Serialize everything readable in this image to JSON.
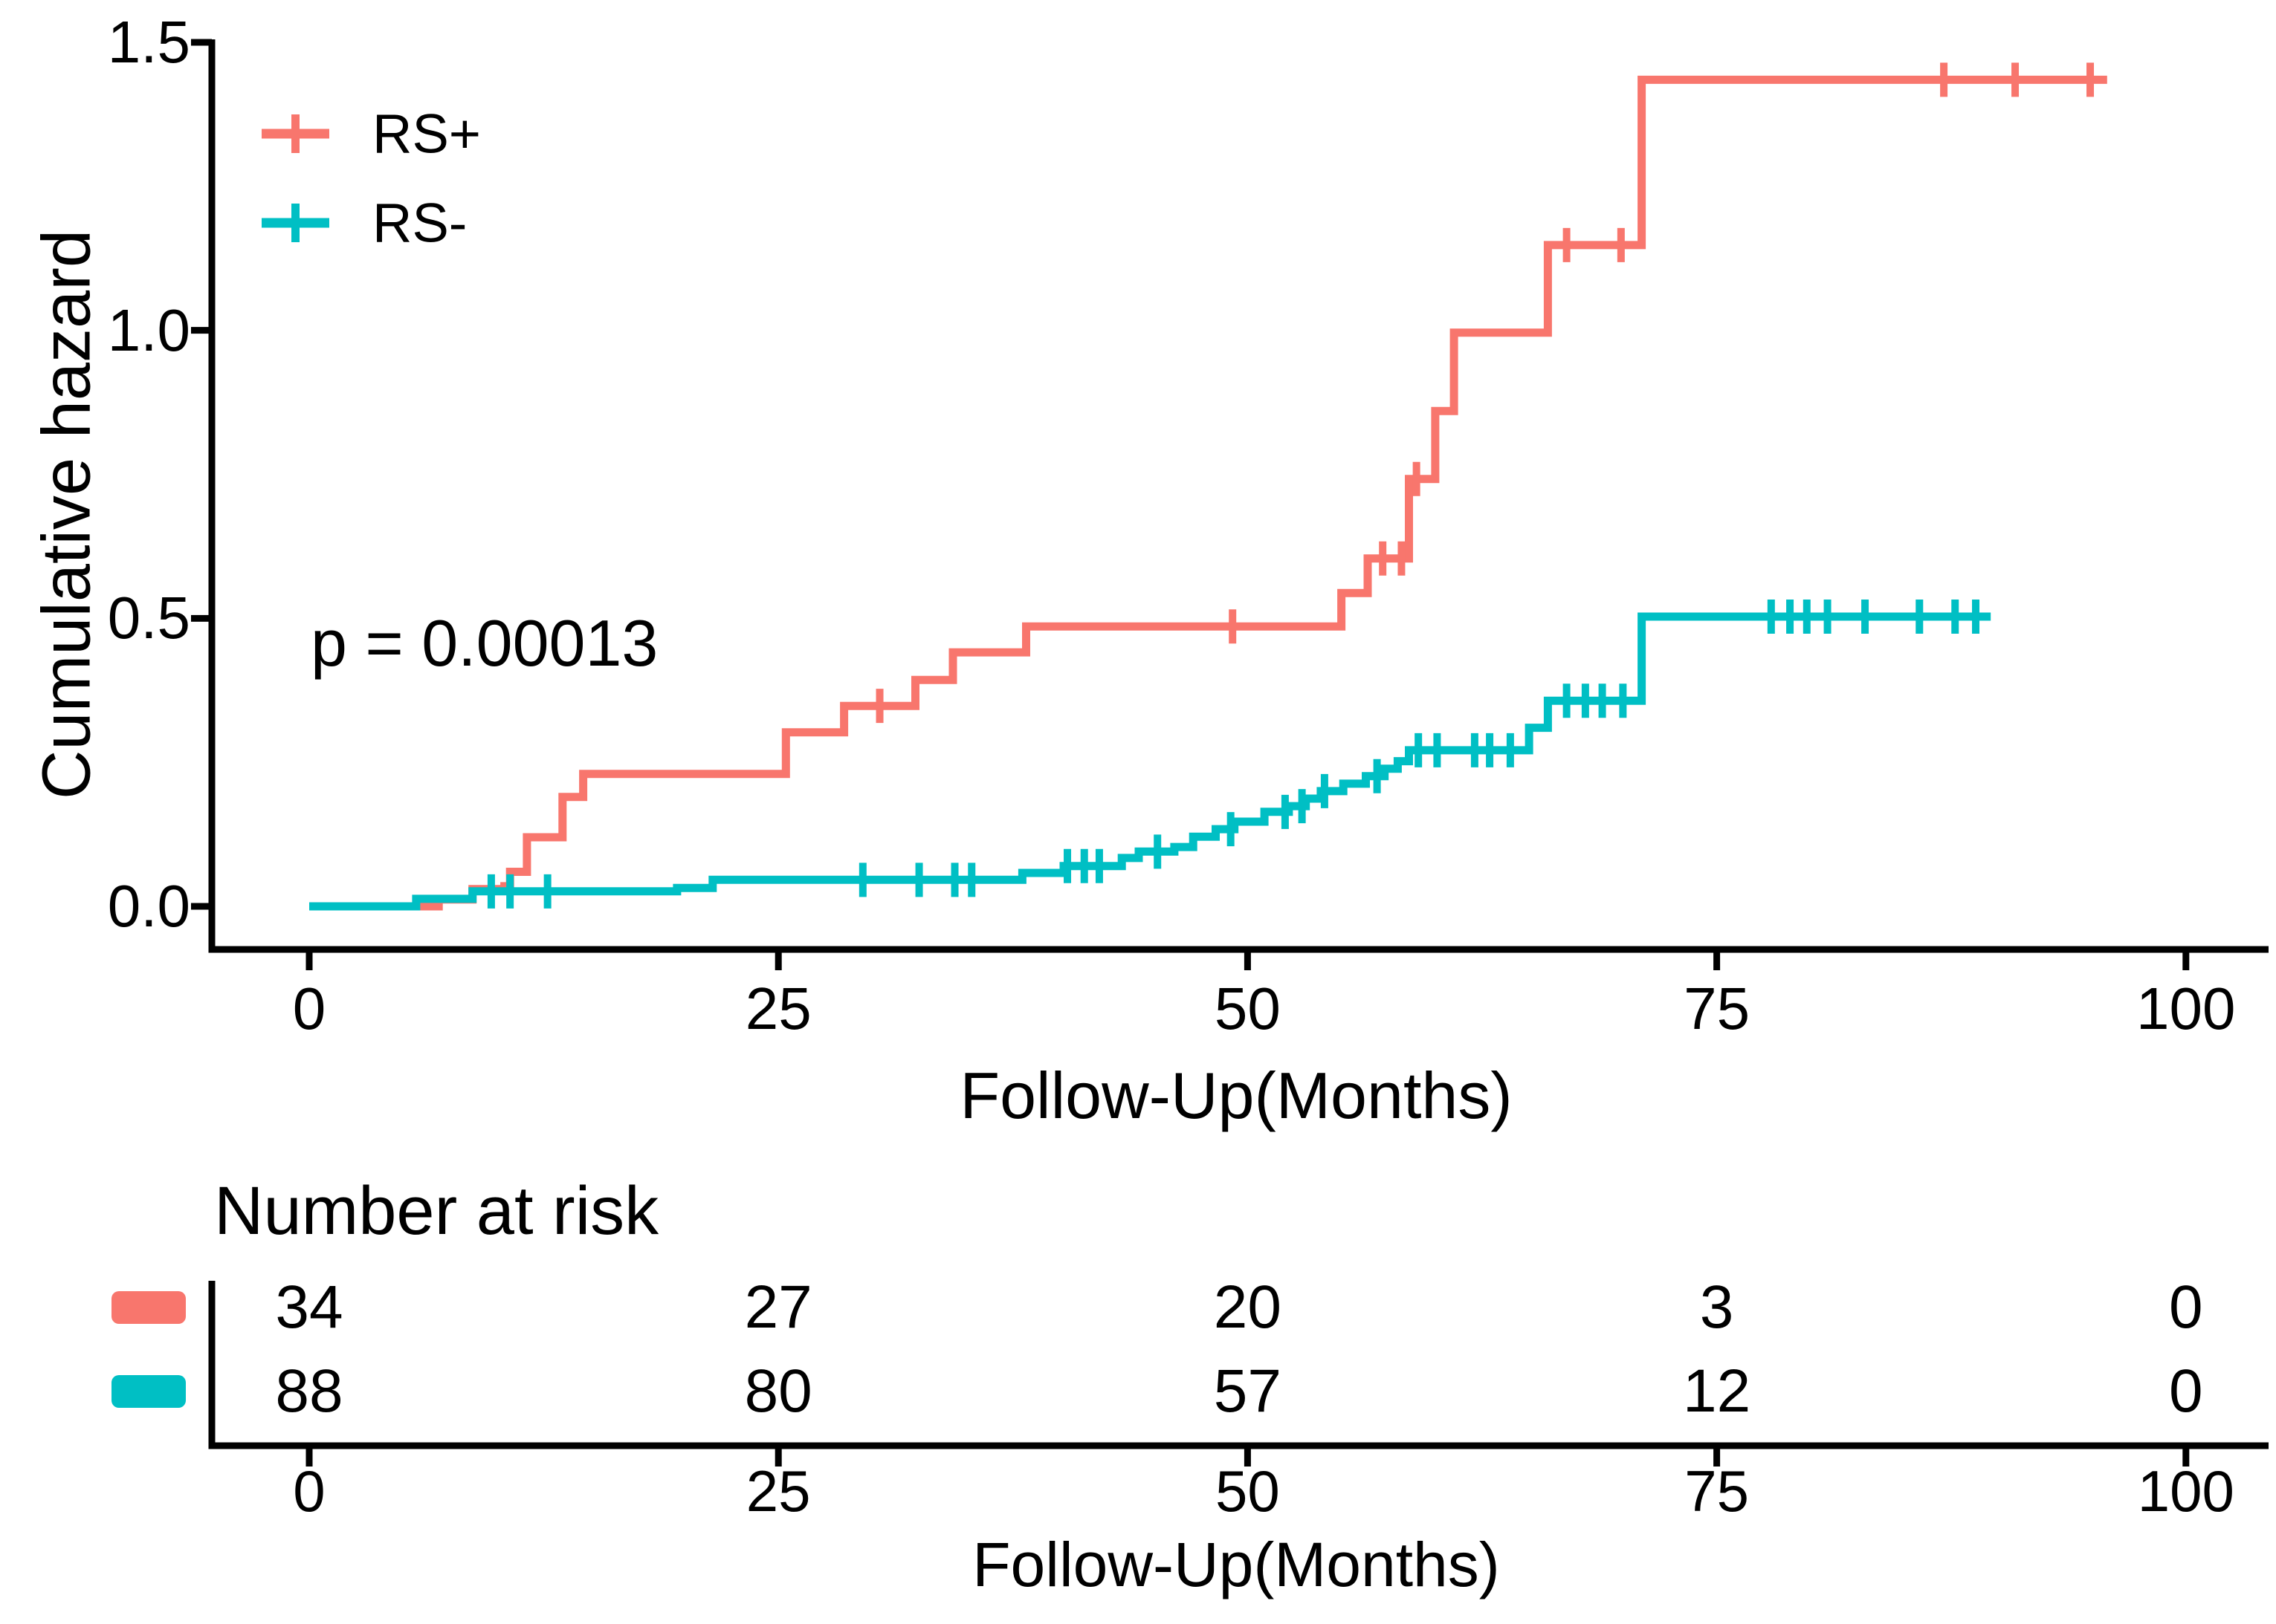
{
  "figure": {
    "y_axis_label": "Cumulative hazard",
    "x_axis_label": "Follow-Up(Months)",
    "p_value_text": "p = 0.00013",
    "colors": {
      "rs_plus": "#F8766D",
      "rs_minus": "#00BFC4",
      "axis": "#000000",
      "text": "#000000"
    }
  },
  "legend": {
    "items": [
      {
        "label": "RS+",
        "color": "#F8766D"
      },
      {
        "label": "RS-",
        "color": "#00BFC4"
      }
    ]
  },
  "chart_data": {
    "type": "line",
    "subtype": "step-function-cumulative-hazard",
    "title": "",
    "xlabel": "Follow-Up(Months)",
    "ylabel": "Cumulative hazard",
    "xlim": [
      0,
      100
    ],
    "ylim": [
      0,
      1.5
    ],
    "x_tick_values": [
      0,
      25,
      50,
      75,
      100
    ],
    "x_tick_labels": [
      "0",
      "25",
      "50",
      "75",
      "100"
    ],
    "y_tick_values": [
      0.0,
      0.5,
      1.0,
      1.5
    ],
    "y_tick_labels": [
      "0.0",
      "0.5",
      "1.0",
      "1.5"
    ],
    "grid": false,
    "legend_position": "inside-top-left",
    "annotations": [
      {
        "text": "p = 0.00013",
        "x": 1,
        "y": 0.5
      }
    ],
    "series": [
      {
        "name": "RS+",
        "color": "#F8766D",
        "end_month": 95.8,
        "steps": [
          [
            0,
            0
          ],
          [
            6.9,
            0.012
          ],
          [
            8.7,
            0.03
          ],
          [
            10.4,
            0.035
          ],
          [
            10.7,
            0.06
          ],
          [
            11.6,
            0.12
          ],
          [
            13.5,
            0.19
          ],
          [
            14.6,
            0.23
          ],
          [
            25.4,
            0.302
          ],
          [
            28.5,
            0.348
          ],
          [
            32.3,
            0.393
          ],
          [
            34.3,
            0.441
          ],
          [
            38.2,
            0.486
          ],
          [
            55.0,
            0.544
          ],
          [
            56.4,
            0.604
          ],
          [
            58.6,
            0.742
          ],
          [
            60.0,
            0.86
          ],
          [
            61.0,
            0.996
          ],
          [
            66.0,
            1.148
          ],
          [
            71.0,
            1.435
          ]
        ],
        "censor_marks": [
          [
            30.4,
            0.348
          ],
          [
            49.2,
            0.486
          ],
          [
            57.2,
            0.604
          ],
          [
            58.2,
            0.604
          ],
          [
            59.0,
            0.742
          ],
          [
            67.0,
            1.148
          ],
          [
            69.9,
            1.148
          ],
          [
            87.1,
            1.435
          ],
          [
            90.9,
            1.435
          ],
          [
            94.9,
            1.435
          ]
        ]
      },
      {
        "name": "RS-",
        "color": "#00BFC4",
        "end_month": 89.6,
        "steps": [
          [
            0,
            0
          ],
          [
            5.7,
            0.013
          ],
          [
            8.7,
            0.026
          ],
          [
            19.6,
            0.032
          ],
          [
            21.5,
            0.046
          ],
          [
            38.0,
            0.058
          ],
          [
            40.2,
            0.07
          ],
          [
            43.3,
            0.084
          ],
          [
            44.2,
            0.095
          ],
          [
            46.1,
            0.103
          ],
          [
            47.1,
            0.121
          ],
          [
            48.3,
            0.134
          ],
          [
            49.3,
            0.147
          ],
          [
            50.9,
            0.164
          ],
          [
            52.2,
            0.174
          ],
          [
            53.1,
            0.187
          ],
          [
            53.9,
            0.2
          ],
          [
            55.1,
            0.213
          ],
          [
            56.3,
            0.226
          ],
          [
            57.3,
            0.239
          ],
          [
            58.0,
            0.252
          ],
          [
            58.6,
            0.271
          ],
          [
            65.0,
            0.31
          ],
          [
            66.0,
            0.357
          ],
          [
            71.0,
            0.503
          ]
        ],
        "censor_marks": [
          [
            9.7,
            0.026
          ],
          [
            10.7,
            0.026
          ],
          [
            12.7,
            0.026
          ],
          [
            29.5,
            0.046
          ],
          [
            32.5,
            0.046
          ],
          [
            34.4,
            0.046
          ],
          [
            35.3,
            0.046
          ],
          [
            40.4,
            0.07
          ],
          [
            41.3,
            0.07
          ],
          [
            42.1,
            0.07
          ],
          [
            45.2,
            0.095
          ],
          [
            49.1,
            0.134
          ],
          [
            52.0,
            0.164
          ],
          [
            52.9,
            0.174
          ],
          [
            54.1,
            0.2
          ],
          [
            56.9,
            0.226
          ],
          [
            59.1,
            0.271
          ],
          [
            60.1,
            0.271
          ],
          [
            62.1,
            0.271
          ],
          [
            62.9,
            0.271
          ],
          [
            64.0,
            0.271
          ],
          [
            67.0,
            0.357
          ],
          [
            68.0,
            0.357
          ],
          [
            68.9,
            0.357
          ],
          [
            70.0,
            0.357
          ],
          [
            77.9,
            0.503
          ],
          [
            78.9,
            0.503
          ],
          [
            79.8,
            0.503
          ],
          [
            80.9,
            0.503
          ],
          [
            82.9,
            0.503
          ],
          [
            85.8,
            0.503
          ],
          [
            87.7,
            0.503
          ],
          [
            88.8,
            0.503
          ]
        ]
      }
    ]
  },
  "risk_table": {
    "title": "Number at risk",
    "x_axis_label": "Follow-Up(Months)",
    "x_tick_values": [
      0,
      25,
      50,
      75,
      100
    ],
    "x_tick_labels": [
      "0",
      "25",
      "50",
      "75",
      "100"
    ],
    "rows": [
      {
        "label": "RS+",
        "color": "#F8766D",
        "values": [
          "34",
          "27",
          "20",
          "3",
          "0"
        ]
      },
      {
        "label": "RS-",
        "color": "#00BFC4",
        "values": [
          "88",
          "80",
          "57",
          "12",
          "0"
        ]
      }
    ]
  }
}
